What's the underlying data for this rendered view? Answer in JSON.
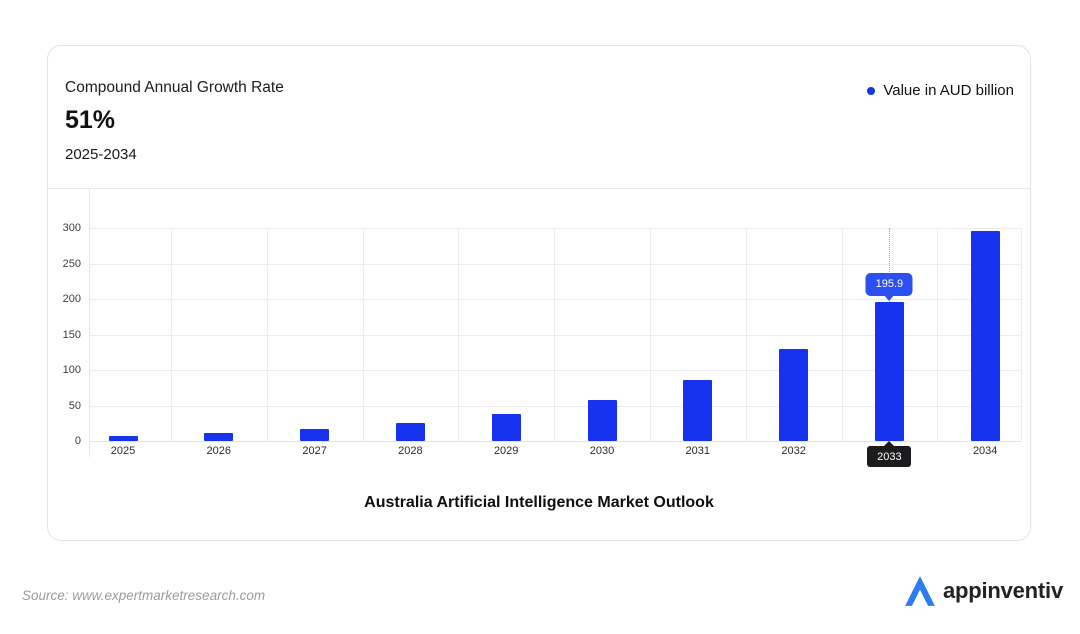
{
  "header": {
    "cagr_label": "Compound Annual Growth Rate",
    "cagr_value": "51%",
    "cagr_period": "2025-2034"
  },
  "legend": {
    "label": "Value in AUD billion",
    "dot_color": "#1733f0"
  },
  "chart_data": {
    "type": "bar",
    "title": "Australia Artificial Intelligence Market Outlook",
    "categories": [
      "2025",
      "2026",
      "2027",
      "2028",
      "2029",
      "2030",
      "2031",
      "2032",
      "2033",
      "2034"
    ],
    "values": [
      7.3,
      11.0,
      16.6,
      25.1,
      37.9,
      57.1,
      86.2,
      130.2,
      195.9,
      295.8
    ],
    "xlabel": "",
    "ylabel": "",
    "ylim": [
      0,
      300
    ],
    "yticks": [
      0,
      50,
      100,
      150,
      200,
      250,
      300
    ],
    "grid": true,
    "legend_position": "top-right",
    "bar_color": "#1733f0",
    "highlight": {
      "category": "2033",
      "tooltip_label": "195.9",
      "tooltip_color": "#2b4ff2",
      "axis_chip_bg": "#1b1b1d"
    }
  },
  "footer": {
    "source": "Source: www.expertmarketresearch.com",
    "brand": "appinventiv",
    "brand_color": "#2e7cf0"
  }
}
